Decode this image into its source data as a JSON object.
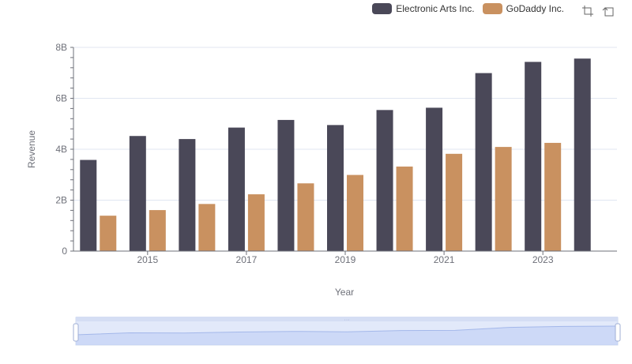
{
  "legend": {
    "items": [
      {
        "name": "Electronic Arts Inc.",
        "color": "#4a4858"
      },
      {
        "name": "GoDaddy Inc.",
        "color": "#c99160"
      }
    ]
  },
  "toolbox": {
    "icons": [
      "zoom-icon",
      "restore-icon"
    ]
  },
  "chart_data": {
    "type": "bar",
    "x": [
      2014,
      2015,
      2016,
      2017,
      2018,
      2019,
      2020,
      2021,
      2022,
      2023,
      2024
    ],
    "x_tick_labels": [
      "2015",
      "2017",
      "2019",
      "2021",
      "2023"
    ],
    "y_tick_labels": [
      "0",
      "2B",
      "4B",
      "6B",
      "8B"
    ],
    "ylim": [
      0,
      8000000000
    ],
    "xlabel": "Year",
    "ylabel": "Revenue",
    "grid": true,
    "legend_position": "top-right",
    "series": [
      {
        "name": "Electronic Arts Inc.",
        "color": "#4a4858",
        "values": [
          3580000000,
          4520000000,
          4400000000,
          4850000000,
          5150000000,
          4950000000,
          5540000000,
          5630000000,
          6990000000,
          7430000000,
          7560000000
        ]
      },
      {
        "name": "GoDaddy Inc.",
        "color": "#c99160",
        "values": [
          1390000000,
          1610000000,
          1850000000,
          2230000000,
          2660000000,
          2990000000,
          3320000000,
          3820000000,
          4090000000,
          4250000000,
          null
        ]
      }
    ]
  },
  "data_zoom": {
    "start_percent": 0,
    "end_percent": 100
  }
}
